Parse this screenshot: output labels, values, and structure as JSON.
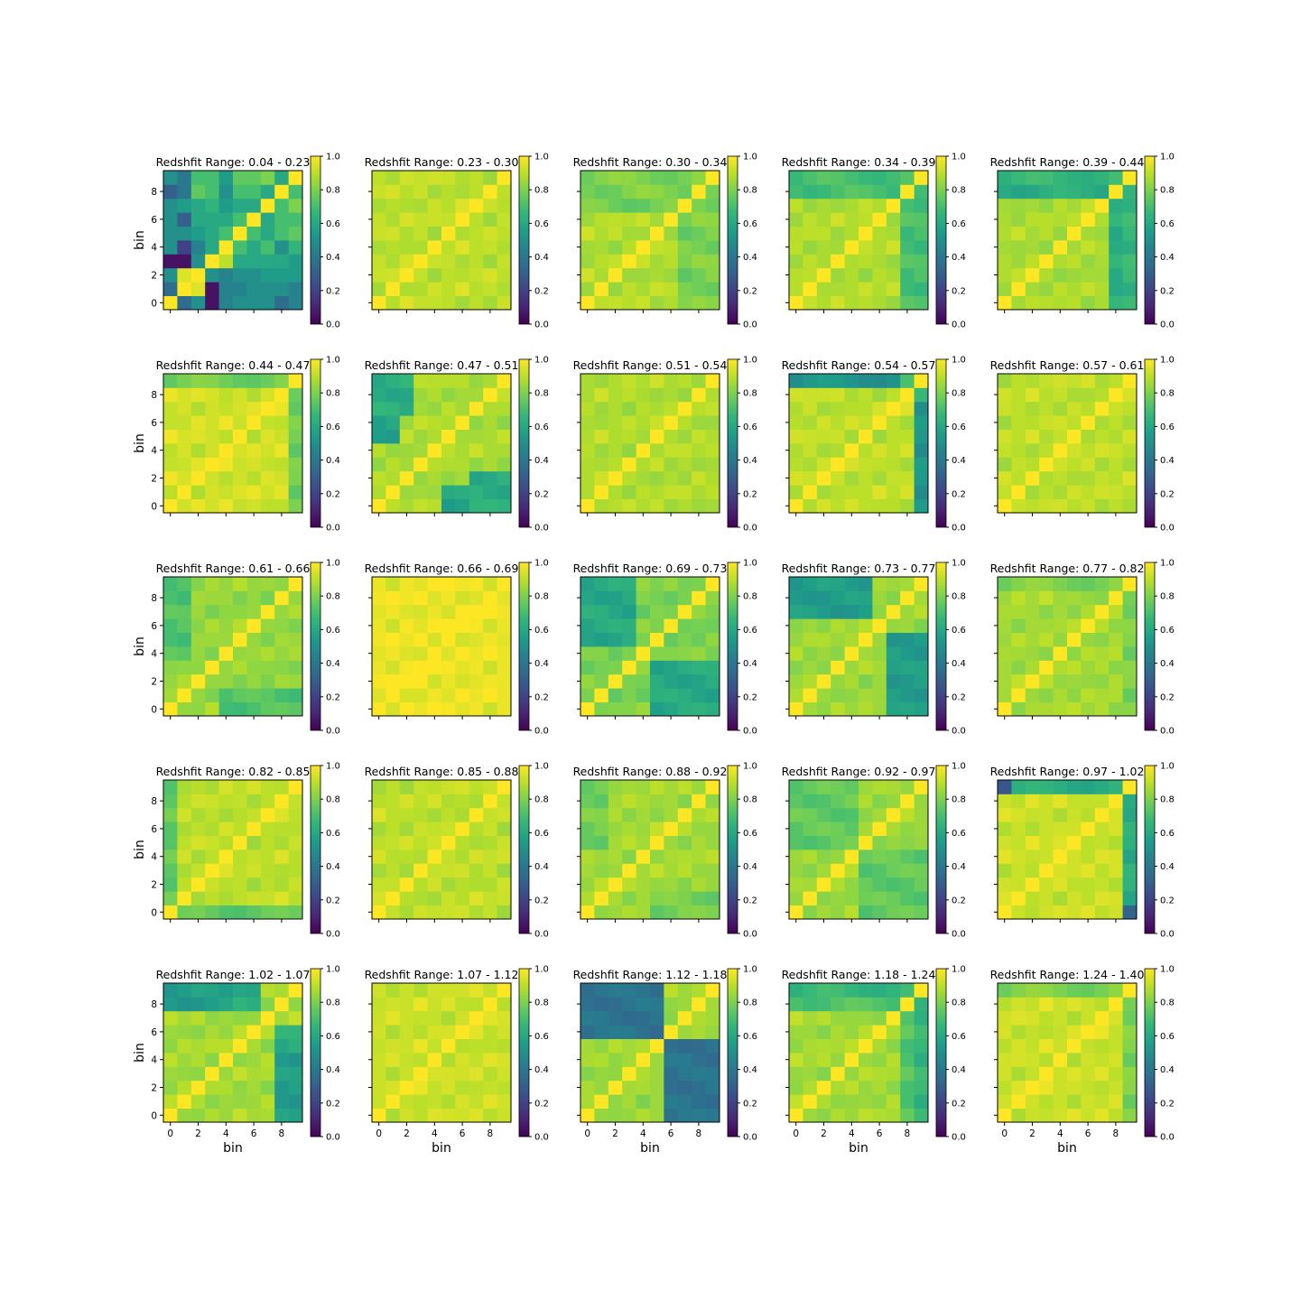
{
  "colormap": "viridis",
  "colormap_stops": [
    "#440154",
    "#482878",
    "#3e4989",
    "#31688e",
    "#26828e",
    "#1f9e89",
    "#35b779",
    "#6ece58",
    "#b5de2b",
    "#fde725"
  ],
  "chart_data": [
    {
      "type": "heatmap",
      "title": "Redshfit Range: 0.04 - 0.23",
      "xlabel": "",
      "ylabel": "bin",
      "zlim": [
        0,
        1
      ],
      "z": [
        [
          1,
          0.35,
          0.5,
          0.05,
          0.45,
          0.5,
          0.5,
          0.5,
          0.35,
          0.45
        ],
        [
          0.35,
          1,
          0.95,
          0.05,
          0.45,
          0.45,
          0.5,
          0.5,
          0.5,
          0.45
        ],
        [
          0.5,
          0.95,
          1,
          0.5,
          0.45,
          0.5,
          0.5,
          0.55,
          0.55,
          0.55
        ],
        [
          0.05,
          0.05,
          0.5,
          1,
          0.9,
          0.6,
          0.6,
          0.6,
          0.6,
          0.55
        ],
        [
          0.5,
          0.2,
          0.45,
          0.6,
          1,
          0.7,
          0.6,
          0.7,
          0.5,
          0.65
        ],
        [
          0.5,
          0.5,
          0.55,
          0.6,
          0.7,
          1,
          0.7,
          0.6,
          0.7,
          0.75
        ],
        [
          0.5,
          0.3,
          0.6,
          0.6,
          0.6,
          0.7,
          1,
          0.6,
          0.7,
          0.7
        ],
        [
          0.5,
          0.55,
          0.6,
          0.65,
          0.55,
          0.6,
          0.6,
          1,
          0.7,
          0.8
        ],
        [
          0.3,
          0.4,
          0.75,
          0.7,
          0.5,
          0.7,
          0.7,
          0.6,
          1,
          0.7
        ],
        [
          0.5,
          0.4,
          0.7,
          0.7,
          0.55,
          0.75,
          0.75,
          0.8,
          0.6,
          1
        ]
      ]
    },
    {
      "type": "heatmap",
      "title": "Redshfit Range: 0.23 - 0.30",
      "xlabel": "",
      "ylabel": "",
      "zlim": [
        0,
        1
      ],
      "z": []
    },
    {
      "type": "heatmap",
      "title": "Redshfit Range: 0.30 - 0.34",
      "xlabel": "",
      "ylabel": "",
      "zlim": [
        0,
        1
      ],
      "z": []
    },
    {
      "type": "heatmap",
      "title": "Redshfit Range: 0.34 - 0.39",
      "xlabel": "",
      "ylabel": "",
      "zlim": [
        0,
        1
      ],
      "z": []
    },
    {
      "type": "heatmap",
      "title": "Redshfit Range: 0.39 - 0.44",
      "xlabel": "",
      "ylabel": "",
      "zlim": [
        0,
        1
      ],
      "z": []
    },
    {
      "type": "heatmap",
      "title": "Redshfit Range: 0.44 - 0.47",
      "xlabel": "",
      "ylabel": "bin",
      "zlim": [
        0,
        1
      ],
      "z": []
    },
    {
      "type": "heatmap",
      "title": "Redshfit Range: 0.47 - 0.51",
      "xlabel": "",
      "ylabel": "",
      "zlim": [
        0,
        1
      ],
      "z": []
    },
    {
      "type": "heatmap",
      "title": "Redshfit Range: 0.51 - 0.54",
      "xlabel": "",
      "ylabel": "",
      "zlim": [
        0,
        1
      ],
      "z": []
    },
    {
      "type": "heatmap",
      "title": "Redshfit Range: 0.54 - 0.57",
      "xlabel": "",
      "ylabel": "",
      "zlim": [
        0,
        1
      ],
      "z": []
    },
    {
      "type": "heatmap",
      "title": "Redshfit Range: 0.57 - 0.61",
      "xlabel": "",
      "ylabel": "",
      "zlim": [
        0,
        1
      ],
      "z": []
    },
    {
      "type": "heatmap",
      "title": "Redshfit Range: 0.61 - 0.66",
      "xlabel": "",
      "ylabel": "bin",
      "zlim": [
        0,
        1
      ],
      "z": []
    },
    {
      "type": "heatmap",
      "title": "Redshfit Range: 0.66 - 0.69",
      "xlabel": "",
      "ylabel": "",
      "zlim": [
        0,
        1
      ],
      "z": []
    },
    {
      "type": "heatmap",
      "title": "Redshfit Range: 0.69 - 0.73",
      "xlabel": "",
      "ylabel": "",
      "zlim": [
        0,
        1
      ],
      "z": []
    },
    {
      "type": "heatmap",
      "title": "Redshfit Range: 0.73 - 0.77",
      "xlabel": "",
      "ylabel": "",
      "zlim": [
        0,
        1
      ],
      "z": []
    },
    {
      "type": "heatmap",
      "title": "Redshfit Range: 0.77 - 0.82",
      "xlabel": "",
      "ylabel": "",
      "zlim": [
        0,
        1
      ],
      "z": []
    },
    {
      "type": "heatmap",
      "title": "Redshfit Range: 0.82 - 0.85",
      "xlabel": "",
      "ylabel": "bin",
      "zlim": [
        0,
        1
      ],
      "z": []
    },
    {
      "type": "heatmap",
      "title": "Redshfit Range: 0.85 - 0.88",
      "xlabel": "",
      "ylabel": "",
      "zlim": [
        0,
        1
      ],
      "z": []
    },
    {
      "type": "heatmap",
      "title": "Redshfit Range: 0.88 - 0.92",
      "xlabel": "",
      "ylabel": "",
      "zlim": [
        0,
        1
      ],
      "z": []
    },
    {
      "type": "heatmap",
      "title": "Redshfit Range: 0.92 - 0.97",
      "xlabel": "",
      "ylabel": "",
      "zlim": [
        0,
        1
      ],
      "z": []
    },
    {
      "type": "heatmap",
      "title": "Redshfit Range: 0.97 - 1.02",
      "xlabel": "",
      "ylabel": "",
      "zlim": [
        0,
        1
      ],
      "z": []
    },
    {
      "type": "heatmap",
      "title": "Redshfit Range: 1.02 - 1.07",
      "xlabel": "bin",
      "ylabel": "bin",
      "zlim": [
        0,
        1
      ],
      "z": []
    },
    {
      "type": "heatmap",
      "title": "Redshfit Range: 1.07 - 1.12",
      "xlabel": "bin",
      "ylabel": "",
      "zlim": [
        0,
        1
      ],
      "z": []
    },
    {
      "type": "heatmap",
      "title": "Redshfit Range: 1.12 - 1.18",
      "xlabel": "bin",
      "ylabel": "",
      "zlim": [
        0,
        1
      ],
      "z": []
    },
    {
      "type": "heatmap",
      "title": "Redshfit Range: 1.18 - 1.24",
      "xlabel": "bin",
      "ylabel": "",
      "zlim": [
        0,
        1
      ],
      "z": []
    },
    {
      "type": "heatmap",
      "title": "Redshfit Range: 1.24 - 1.40",
      "xlabel": "bin",
      "ylabel": "",
      "zlim": [
        0,
        1
      ],
      "z": []
    }
  ],
  "axis_ticks": {
    "x": [
      "0",
      "2",
      "4",
      "6",
      "8"
    ],
    "y": [
      "0",
      "2",
      "4",
      "6",
      "8"
    ],
    "colorbar": [
      "0.0",
      "0.2",
      "0.4",
      "0.6",
      "0.8",
      "1.0"
    ]
  }
}
